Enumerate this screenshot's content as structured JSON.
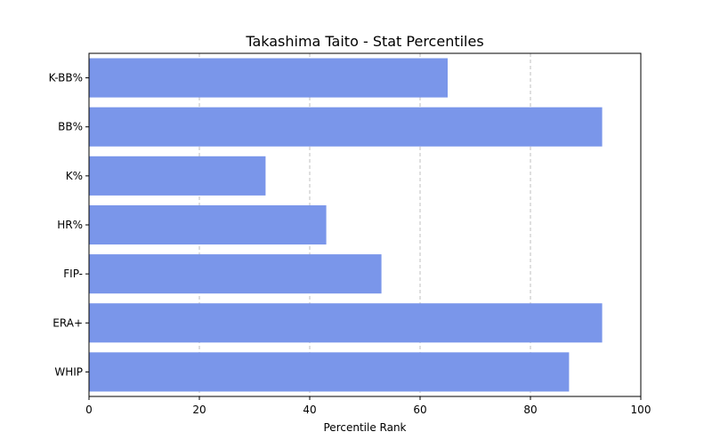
{
  "chart_data": {
    "type": "bar",
    "orientation": "horizontal",
    "title": "Takashima Taito - Stat Percentiles",
    "xlabel": "Percentile Rank",
    "ylabel": "",
    "xlim": [
      0,
      100
    ],
    "xticks": [
      0,
      20,
      40,
      60,
      80,
      100
    ],
    "grid": "x-dashed",
    "categories": [
      "K-BB%",
      "BB%",
      "K%",
      "HR%",
      "FIP-",
      "ERA+",
      "WHIP"
    ],
    "values": [
      65,
      93,
      32,
      43,
      53,
      93,
      87
    ],
    "bar_color": "#7a96ea"
  }
}
